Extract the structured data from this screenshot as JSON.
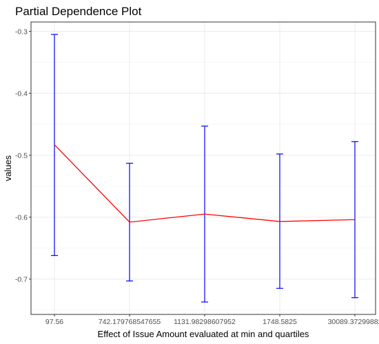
{
  "chart_data": {
    "type": "line",
    "title": "Partial Dependence Plot",
    "xlabel": "Effect of Issue Amount evaluated at min and quartiles",
    "ylabel": "values",
    "categories": [
      "97.56",
      "742.179768547655",
      "1131.98298607952",
      "1748.5825",
      "30089.37299882"
    ],
    "series": [
      {
        "values": [
          -0.483,
          -0.608,
          -0.595,
          -0.607,
          -0.604
        ],
        "color": "#ff0000"
      }
    ],
    "error_bars": {
      "upper": [
        -0.305,
        -0.513,
        -0.453,
        -0.498,
        -0.478
      ],
      "lower": [
        -0.662,
        -0.703,
        -0.737,
        -0.715,
        -0.73
      ],
      "color": "#0000ff"
    },
    "yticks": [
      -0.3,
      -0.4,
      -0.5,
      -0.6,
      -0.7
    ],
    "ytick_labels": [
      "-0.3",
      "-0.4",
      "-0.5",
      "-0.6",
      "-0.7"
    ],
    "ylim": [
      -0.757,
      -0.285
    ],
    "grid": true,
    "legend": "none"
  }
}
